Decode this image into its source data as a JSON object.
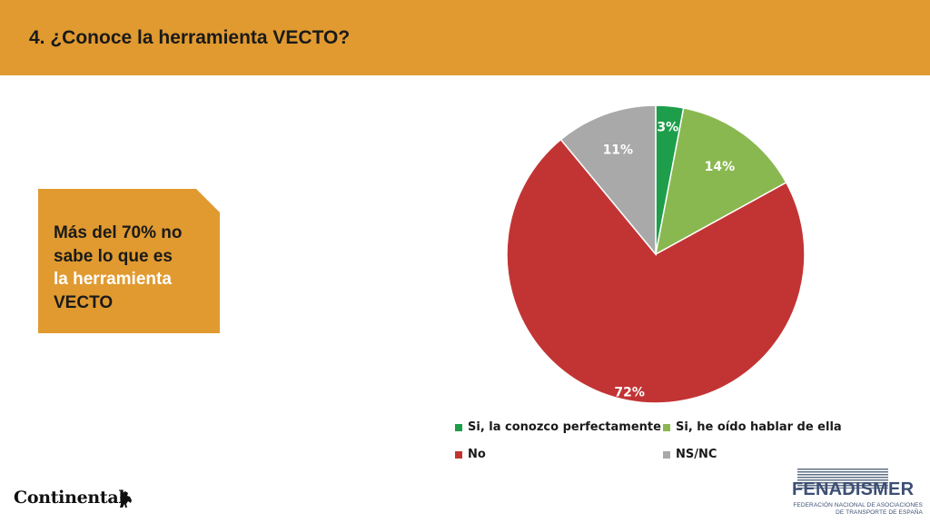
{
  "header": {
    "title": "4. ¿Conoce la herramienta VECTO?"
  },
  "callout": {
    "line1": "Más del 70% no",
    "line2": "sabe lo que es",
    "line3": "la herramienta",
    "line4": "VECTO"
  },
  "chart_data": {
    "type": "pie",
    "title": "",
    "categories": [
      "Si, la conozco perfectamente",
      "Si, he oído hablar de ella",
      "No",
      "NS/NC"
    ],
    "values": [
      3,
      14,
      72,
      11
    ],
    "labels": [
      "3%",
      "14%",
      "72%",
      "11%"
    ],
    "colors": [
      "#1e9e4a",
      "#8ab850",
      "#c23434",
      "#a9a9a9"
    ],
    "legend_position": "bottom"
  },
  "logos": {
    "continental": "Continental",
    "fenadismer": "FENADISMER",
    "fenadismer_sub1": "FEDERACIÓN NACIONAL DE ASOCIACIONES",
    "fenadismer_sub2": "DE TRANSPORTE DE ESPAÑA"
  }
}
